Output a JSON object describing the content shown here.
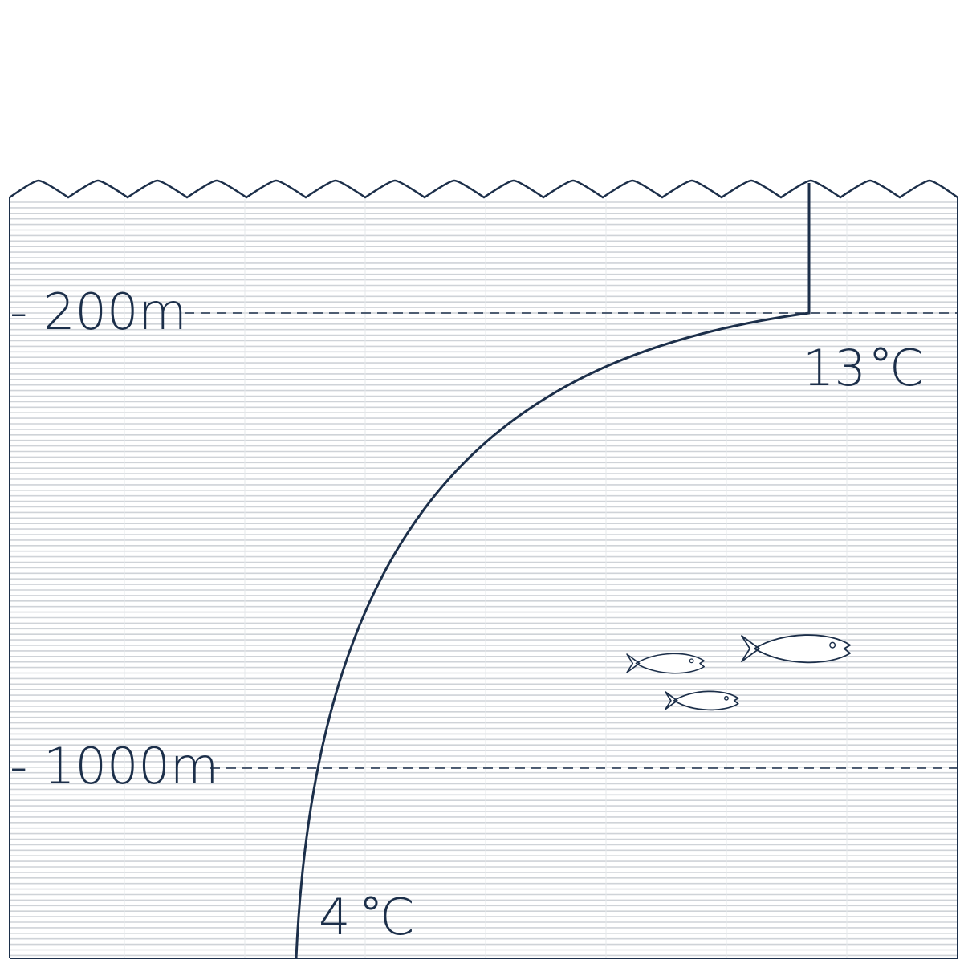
{
  "depth_markers": [
    {
      "label": "- 200m"
    },
    {
      "label": "- 1000m"
    }
  ],
  "temperatures": {
    "surface": {
      "value": "13",
      "unit": "C"
    },
    "deep": {
      "value": "4",
      "unit": "C"
    }
  },
  "colors": {
    "ink": "#1c2f4a",
    "water_lines": "#cfd3d8",
    "background": "#ffffff"
  },
  "icons": [
    "wave-surface",
    "fish-icon",
    "fish-icon",
    "fish-icon"
  ]
}
